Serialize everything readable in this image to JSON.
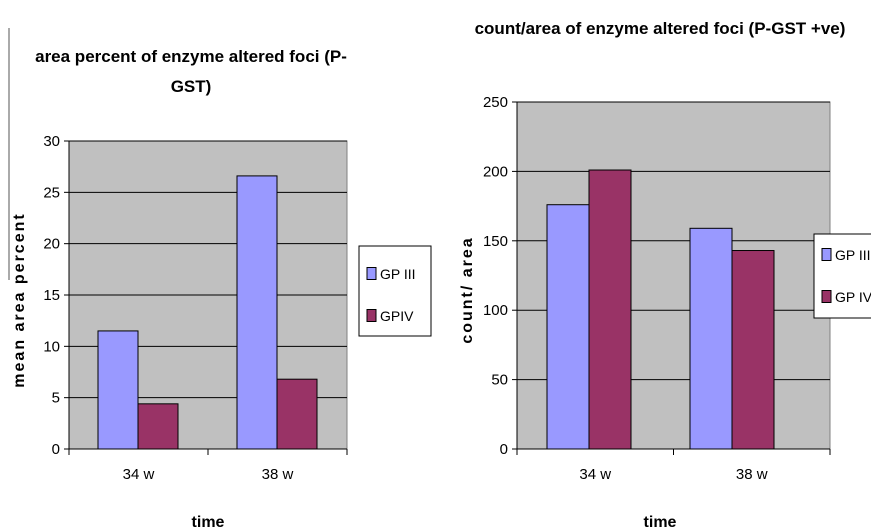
{
  "chart_data": [
    {
      "type": "bar",
      "title_lines": [
        "area percent of enzyme altered foci (P-",
        "GST)"
      ],
      "xlabel": "time",
      "ylabel": "mean area percent",
      "categories": [
        "34 w",
        "38 w"
      ],
      "series": [
        {
          "name": "GP III",
          "values": [
            11.5,
            26.6
          ],
          "color": "#9999ff"
        },
        {
          "name": "GPIV",
          "values": [
            4.4,
            6.8
          ],
          "color": "#993366"
        }
      ],
      "ylim": [
        0,
        30
      ],
      "yticks": [
        0,
        5,
        10,
        15,
        20,
        25,
        30
      ],
      "grid": true,
      "plot_background": "#c0c0c0",
      "legend_position": "right"
    },
    {
      "type": "bar",
      "title_lines": [
        "count/area of enzyme altered foci (P-GST +ve)"
      ],
      "xlabel": "time",
      "ylabel": "count/ area",
      "categories": [
        "34 w",
        "38 w"
      ],
      "series": [
        {
          "name": "GP III",
          "values": [
            176,
            159
          ],
          "color": "#9999ff"
        },
        {
          "name": "GP IV",
          "values": [
            201,
            143
          ],
          "color": "#993366"
        }
      ],
      "ylim": [
        0,
        250
      ],
      "yticks": [
        0,
        50,
        100,
        150,
        200,
        250
      ],
      "grid": true,
      "plot_background": "#c0c0c0",
      "legend_position": "right"
    }
  ]
}
